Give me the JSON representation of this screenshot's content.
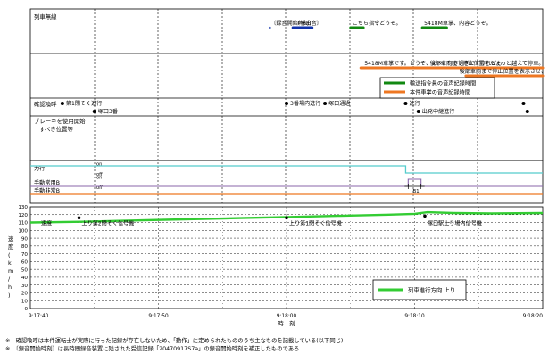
{
  "chart_data": {
    "type": "line",
    "title": "",
    "xlabel": "時　刻",
    "ylabel": "速度 (km/h)",
    "xlim": [
      "9:17:40",
      "9:18:20"
    ],
    "ylim": [
      0,
      130
    ],
    "grid": true,
    "x_ticks": [
      "9:17:40",
      "9:17:50",
      "9:18:00",
      "9:18:10",
      "9:18:20"
    ],
    "y_ticks": [
      0,
      10,
      20,
      30,
      40,
      50,
      60,
      70,
      80,
      90,
      100,
      110,
      120,
      130
    ],
    "legend": {
      "position": "bottom-right",
      "entries": [
        "列車進行方向 上り"
      ]
    },
    "series": [
      {
        "name": "列車進行方向 上り",
        "color": "#33cc33",
        "points": [
          [
            "9:17:40",
            110
          ],
          [
            "9:17:44",
            111
          ],
          [
            "9:17:48",
            112.5
          ],
          [
            "9:17:52",
            114
          ],
          [
            "9:17:56",
            115.5
          ],
          [
            "9:18:00",
            117
          ],
          [
            "9:18:04",
            118.5
          ],
          [
            "9:18:08",
            120
          ],
          [
            "9:18:10",
            121
          ],
          [
            "9:18:11",
            123
          ],
          [
            "9:18:13",
            122
          ],
          [
            "9:18:16",
            121.5
          ],
          [
            "9:18:20",
            122
          ]
        ]
      }
    ],
    "speed_annotations": [
      {
        "time": "9:17:40",
        "label": "速度",
        "marker": false
      },
      {
        "time": "9:17:43.8",
        "label": "上り第2閉そく信号機",
        "marker": true
      },
      {
        "time": "9:18:00",
        "label": "上り第1閉そく信号機",
        "marker": true
      },
      {
        "time": "9:18:10.8",
        "label": "塚口駅上り場内信号機",
        "marker": true
      }
    ],
    "radio_band": {
      "label": "列車無線",
      "legend_entries": [
        {
          "label": "輸送指令員の音声記録時間",
          "color": "#118811"
        },
        {
          "label": "本件車掌の音声記録時間",
          "color": "#ee7722"
        }
      ],
      "items": [
        {
          "label": "〔録音開始時刻〕",
          "start": "9:17:58.7",
          "end": "9:17:58.7",
          "color": "#1133aa"
        },
        {
          "label": "〔呼出音〕",
          "start": "9:18:00.5",
          "end": "9:18:02",
          "color": "#1133aa"
        },
        {
          "label": "こちら指令どうぞ。",
          "start": "9:18:05",
          "end": "9:18:06",
          "color": "#118811"
        },
        {
          "label": "5418M車掌、内容どうぞ。",
          "start": "9:18:10.6",
          "end": "9:18:12.5",
          "color": "#118811"
        },
        {
          "label": "5418M車掌です。どうぞ、え～、行き過ぎですけれども、",
          "start": "9:18:05.8",
          "end": "9:18:10.5",
          "color": "#ee7722"
        },
        {
          "label": "後部車両まで停止位置をちょっと越えて停車。",
          "start": "9:18:10.5",
          "end": "9:18:20",
          "color": "#ee7722"
        },
        {
          "label": "後部車両まで停止位置を表示させ、",
          "start": "9:18:14",
          "end": "9:18:20",
          "color": "#ee7722"
        }
      ]
    },
    "call_band": {
      "label": "確認喚呼",
      "events": [
        {
          "time": "9:17:42.5",
          "label": "第1閉そく進行",
          "row": 0
        },
        {
          "time": "9:17:45",
          "label": "塚口3番",
          "row": 1
        },
        {
          "time": "9:18:00",
          "label": "3番場内進行",
          "row": 0
        },
        {
          "time": "9:18:03",
          "label": "塚口通過",
          "row": 0
        },
        {
          "time": "9:18:09.3",
          "label": "進行",
          "row": 0
        },
        {
          "time": "9:18:10.3",
          "label": "出発中継進行",
          "row": 1
        },
        {
          "time": "9:18:18.5",
          "label": "",
          "row": 0
        },
        {
          "time": "9:18:18.8",
          "label": "",
          "row": 1
        }
      ]
    },
    "brake_band": {
      "label": "ブレーキを使用開始すべき位置等"
    },
    "state_band": {
      "rows": [
        {
          "label": "力行",
          "on_label": "on",
          "off_label": "off",
          "color": "#55cccc",
          "on_from": "9:17:40",
          "on_to": "9:18:09.3"
        },
        {
          "label": "手動常用B",
          "on_label": "on",
          "off_label": "off",
          "color": "#8866aa",
          "on_from": "9:18:09.5",
          "on_to": "9:18:10.5",
          "marker_label": "B1"
        },
        {
          "label": "手動非常B",
          "on_label": "",
          "off_label": "",
          "color": "#ee7722",
          "on_from": null,
          "on_to": null
        }
      ]
    }
  },
  "notes": [
    "※　確認喚呼は本件運転士が実際に行った記録が存在しないため、「動作」に定められたもののうち主なものを記載している(以下同じ)",
    "※　〔録音開始時刻〕は長時間録音装置に残された受信記録「20470917S7a」の録音開始時刻を補正したものである"
  ]
}
